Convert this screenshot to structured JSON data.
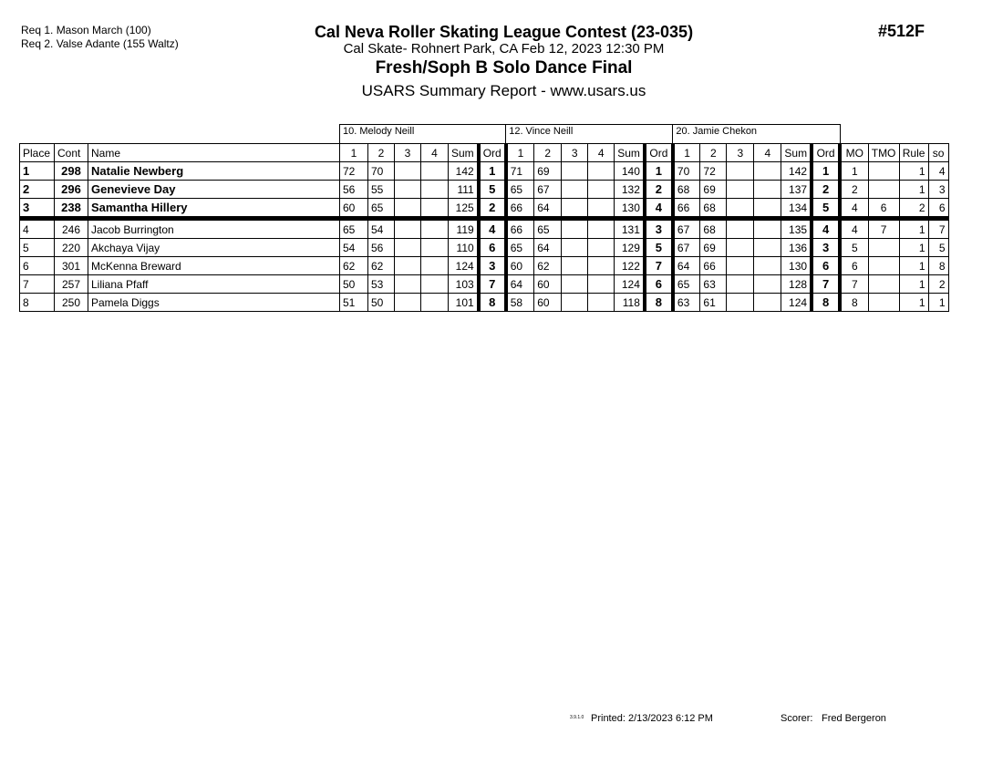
{
  "header": {
    "req1": "Req  1.  Mason March (100)",
    "req2": "Req  2.  Valse Adante (155 Waltz)",
    "title": "Cal Neva Roller Skating League Contest (23-035)",
    "location": "Cal Skate- Rohnert Park, CA  Feb 12, 2023  12:30 PM",
    "event": "Fresh/Soph B Solo Dance Final",
    "report": "USARS Summary Report - www.usars.us",
    "event_no": "#512F"
  },
  "judges": [
    "10.  Melody Neill",
    "12.  Vince Neill",
    "20.  Jamie Chekon"
  ],
  "columns": {
    "place": "Place",
    "cont": "Cont",
    "name": "Name",
    "marks": [
      "1",
      "2",
      "3",
      "4"
    ],
    "sum": "Sum",
    "ord": "Ord",
    "mo": "MO",
    "tmo": "TMO",
    "rule": "Rule",
    "so": "so"
  },
  "rows": [
    {
      "place": "1",
      "cont": "298",
      "name": "Natalie Newberg",
      "j": [
        [
          "72",
          "70",
          "",
          "",
          "142",
          "1"
        ],
        [
          "71",
          "69",
          "",
          "",
          "140",
          "1"
        ],
        [
          "70",
          "72",
          "",
          "",
          "142",
          "1"
        ]
      ],
      "mo": "1",
      "tmo": "",
      "rule": "1",
      "so": "4"
    },
    {
      "place": "2",
      "cont": "296",
      "name": "Genevieve Day",
      "j": [
        [
          "56",
          "55",
          "",
          "",
          "111",
          "5"
        ],
        [
          "65",
          "67",
          "",
          "",
          "132",
          "2"
        ],
        [
          "68",
          "69",
          "",
          "",
          "137",
          "2"
        ]
      ],
      "mo": "2",
      "tmo": "",
      "rule": "1",
      "so": "3"
    },
    {
      "place": "3",
      "cont": "238",
      "name": "Samantha Hillery",
      "j": [
        [
          "60",
          "65",
          "",
          "",
          "125",
          "2"
        ],
        [
          "66",
          "64",
          "",
          "",
          "130",
          "4"
        ],
        [
          "66",
          "68",
          "",
          "",
          "134",
          "5"
        ]
      ],
      "mo": "4",
      "tmo": "6",
      "rule": "2",
      "so": "6"
    },
    {
      "place": "4",
      "cont": "246",
      "name": "Jacob Burrington",
      "j": [
        [
          "65",
          "54",
          "",
          "",
          "119",
          "4"
        ],
        [
          "66",
          "65",
          "",
          "",
          "131",
          "3"
        ],
        [
          "67",
          "68",
          "",
          "",
          "135",
          "4"
        ]
      ],
      "mo": "4",
      "tmo": "7",
      "rule": "1",
      "so": "7"
    },
    {
      "place": "5",
      "cont": "220",
      "name": "Akchaya Vijay",
      "j": [
        [
          "54",
          "56",
          "",
          "",
          "110",
          "6"
        ],
        [
          "65",
          "64",
          "",
          "",
          "129",
          "5"
        ],
        [
          "67",
          "69",
          "",
          "",
          "136",
          "3"
        ]
      ],
      "mo": "5",
      "tmo": "",
      "rule": "1",
      "so": "5"
    },
    {
      "place": "6",
      "cont": "301",
      "name": "McKenna Breward",
      "j": [
        [
          "62",
          "62",
          "",
          "",
          "124",
          "3"
        ],
        [
          "60",
          "62",
          "",
          "",
          "122",
          "7"
        ],
        [
          "64",
          "66",
          "",
          "",
          "130",
          "6"
        ]
      ],
      "mo": "6",
      "tmo": "",
      "rule": "1",
      "so": "8"
    },
    {
      "place": "7",
      "cont": "257",
      "name": "Liliana Pfaff",
      "j": [
        [
          "50",
          "53",
          "",
          "",
          "103",
          "7"
        ],
        [
          "64",
          "60",
          "",
          "",
          "124",
          "6"
        ],
        [
          "65",
          "63",
          "",
          "",
          "128",
          "7"
        ]
      ],
      "mo": "7",
      "tmo": "",
      "rule": "1",
      "so": "2"
    },
    {
      "place": "8",
      "cont": "250",
      "name": "Pamela Diggs",
      "j": [
        [
          "51",
          "50",
          "",
          "",
          "101",
          "8"
        ],
        [
          "58",
          "60",
          "",
          "",
          "118",
          "8"
        ],
        [
          "63",
          "61",
          "",
          "",
          "124",
          "8"
        ]
      ],
      "mo": "8",
      "tmo": "",
      "rule": "1",
      "so": "1"
    }
  ],
  "footer": {
    "version": "3.9.1.0",
    "printed": "Printed:  2/13/2023  6:12 PM",
    "scorer_label": "Scorer:",
    "scorer": "Fred Bergeron"
  }
}
